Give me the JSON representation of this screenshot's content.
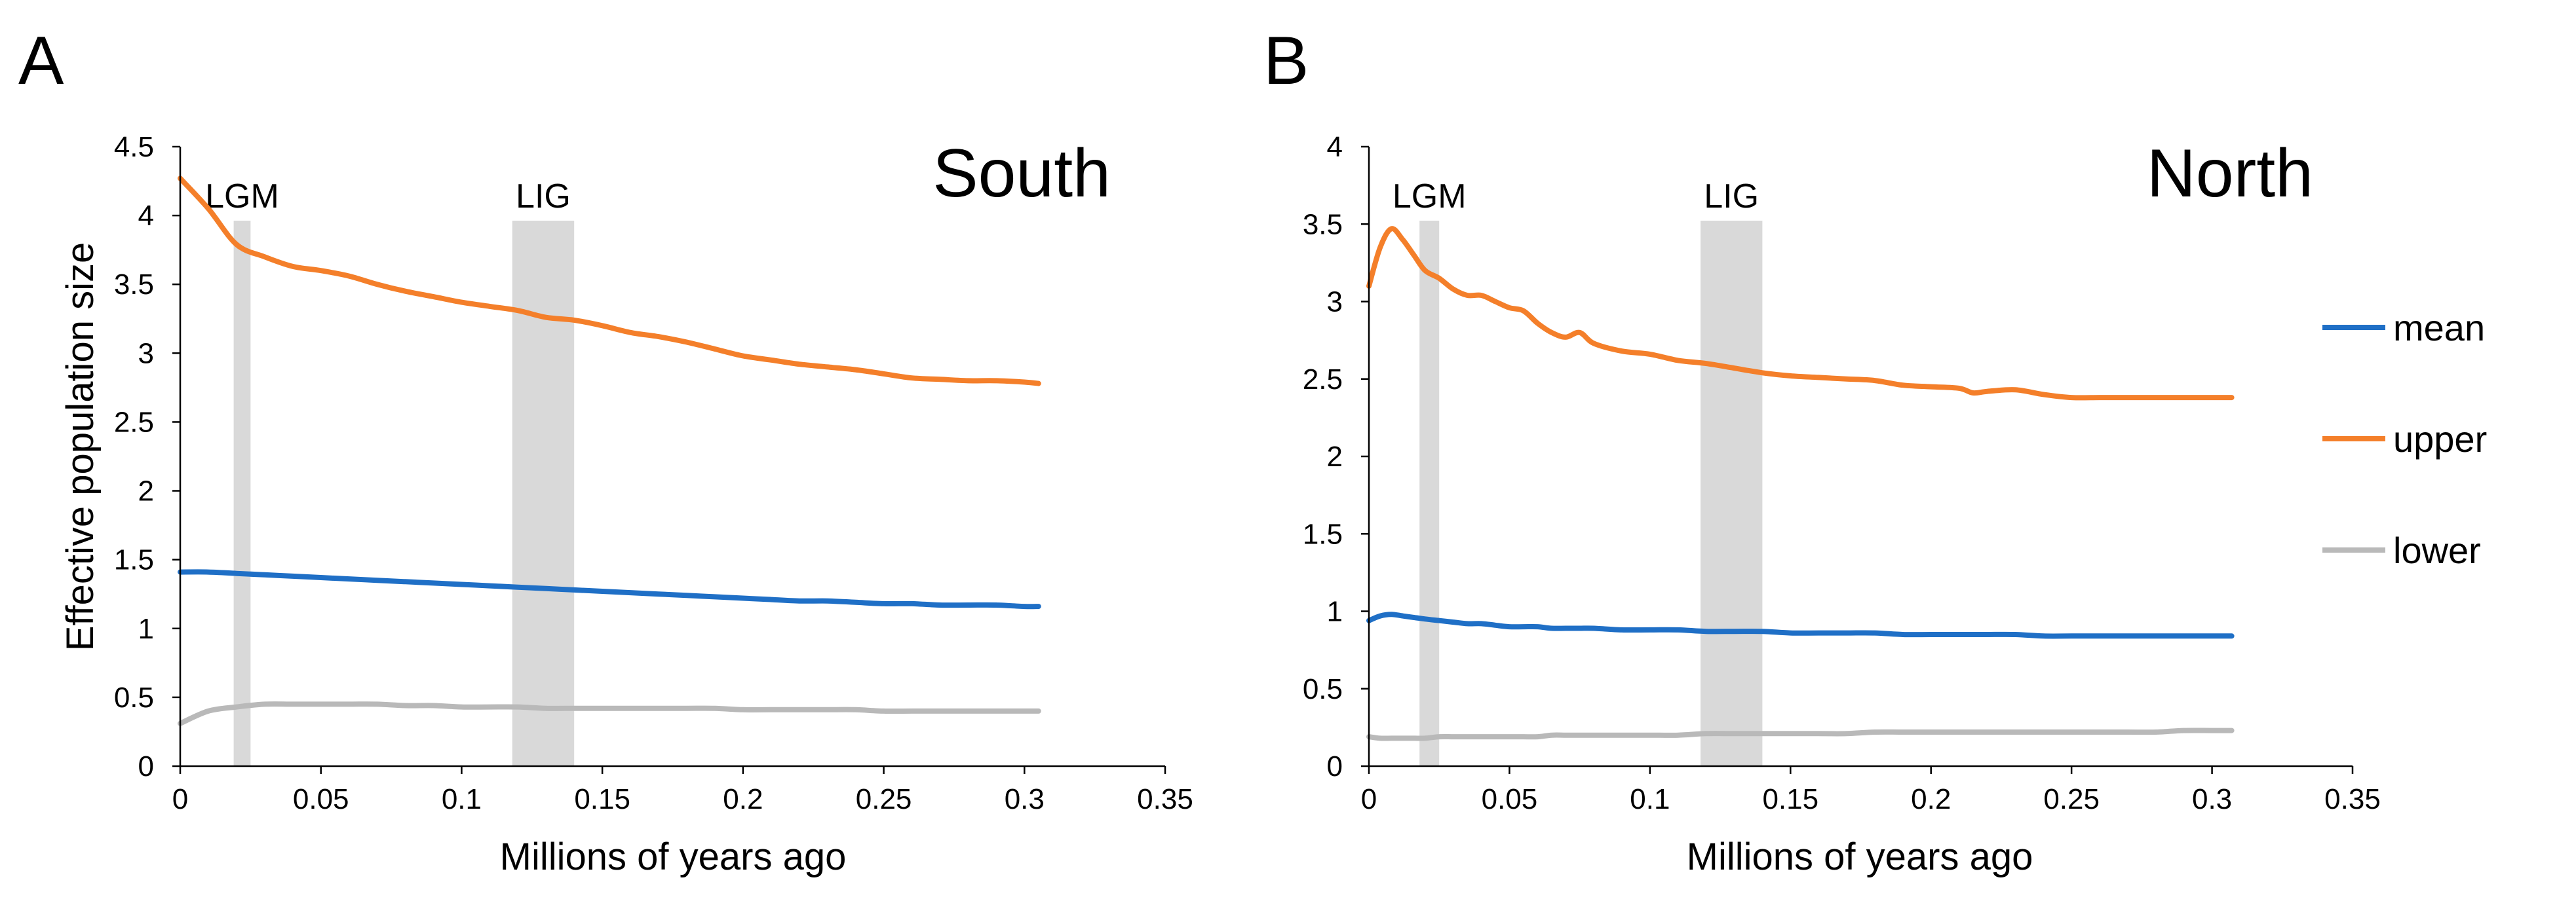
{
  "legend": [
    {
      "name": "mean",
      "color": "#1f6fc6"
    },
    {
      "name": "upper",
      "color": "#f47f2a"
    },
    {
      "name": "lower",
      "color": "#b9b9b9"
    }
  ],
  "chart_data": [
    {
      "type": "line",
      "panel_label": "A",
      "title": "South",
      "xlabel": "Millions of years ago",
      "ylabel": "Effective population size",
      "xlim": [
        0,
        0.35
      ],
      "ylim": [
        0,
        4.5
      ],
      "x_ticks": [
        "0",
        "0.05",
        "0.1",
        "0.15",
        "0.2",
        "0.25",
        "0.3",
        "0.35"
      ],
      "y_ticks": [
        "0",
        "0.5",
        "1",
        "1.5",
        "2",
        "2.5",
        "3",
        "3.5",
        "4",
        "4.5"
      ],
      "grid": false,
      "legend_position": "right",
      "shaded_bands": [
        {
          "label": "LGM",
          "x_start": 0.019,
          "x_end": 0.025
        },
        {
          "label": "LIG",
          "x_start": 0.118,
          "x_end": 0.14
        }
      ],
      "x": [
        0,
        0.01,
        0.02,
        0.03,
        0.04,
        0.05,
        0.06,
        0.07,
        0.08,
        0.09,
        0.1,
        0.11,
        0.12,
        0.13,
        0.14,
        0.15,
        0.16,
        0.17,
        0.18,
        0.19,
        0.2,
        0.21,
        0.22,
        0.23,
        0.24,
        0.25,
        0.26,
        0.27,
        0.28,
        0.29,
        0.3,
        0.305
      ],
      "series": [
        {
          "name": "mean",
          "color": "#1f6fc6",
          "values": [
            1.41,
            1.41,
            1.4,
            1.39,
            1.38,
            1.37,
            1.36,
            1.35,
            1.34,
            1.33,
            1.32,
            1.31,
            1.3,
            1.29,
            1.28,
            1.27,
            1.26,
            1.25,
            1.24,
            1.23,
            1.22,
            1.21,
            1.2,
            1.2,
            1.19,
            1.18,
            1.18,
            1.17,
            1.17,
            1.17,
            1.16,
            1.16
          ]
        },
        {
          "name": "upper",
          "color": "#f47f2a",
          "values": [
            4.27,
            4.05,
            3.79,
            3.7,
            3.63,
            3.6,
            3.56,
            3.5,
            3.45,
            3.41,
            3.37,
            3.34,
            3.31,
            3.26,
            3.24,
            3.2,
            3.15,
            3.12,
            3.08,
            3.03,
            2.98,
            2.95,
            2.92,
            2.9,
            2.88,
            2.85,
            2.82,
            2.81,
            2.8,
            2.8,
            2.79,
            2.78
          ]
        },
        {
          "name": "lower",
          "color": "#b9b9b9",
          "values": [
            0.31,
            0.4,
            0.43,
            0.45,
            0.45,
            0.45,
            0.45,
            0.45,
            0.44,
            0.44,
            0.43,
            0.43,
            0.43,
            0.42,
            0.42,
            0.42,
            0.42,
            0.42,
            0.42,
            0.42,
            0.41,
            0.41,
            0.41,
            0.41,
            0.41,
            0.4,
            0.4,
            0.4,
            0.4,
            0.4,
            0.4,
            0.4
          ]
        }
      ]
    },
    {
      "type": "line",
      "panel_label": "B",
      "title": "North",
      "xlabel": "Millions of years ago",
      "ylabel": "",
      "xlim": [
        0,
        0.35
      ],
      "ylim": [
        0,
        4
      ],
      "x_ticks": [
        "0",
        "0.05",
        "0.1",
        "0.15",
        "0.2",
        "0.25",
        "0.3",
        "0.35"
      ],
      "y_ticks": [
        "0",
        "0.5",
        "1",
        "1.5",
        "2",
        "2.5",
        "3",
        "3.5",
        "4"
      ],
      "grid": false,
      "legend_position": "right",
      "shaded_bands": [
        {
          "label": "LGM",
          "x_start": 0.018,
          "x_end": 0.025
        },
        {
          "label": "LIG",
          "x_start": 0.118,
          "x_end": 0.14
        }
      ],
      "x": [
        0,
        0.004,
        0.008,
        0.012,
        0.016,
        0.02,
        0.025,
        0.03,
        0.035,
        0.04,
        0.045,
        0.05,
        0.055,
        0.06,
        0.065,
        0.07,
        0.075,
        0.08,
        0.09,
        0.1,
        0.11,
        0.12,
        0.13,
        0.14,
        0.15,
        0.16,
        0.17,
        0.18,
        0.19,
        0.2,
        0.21,
        0.215,
        0.22,
        0.23,
        0.24,
        0.25,
        0.26,
        0.27,
        0.28,
        0.29,
        0.3,
        0.307
      ],
      "series": [
        {
          "name": "mean",
          "color": "#1f6fc6",
          "values": [
            0.94,
            0.97,
            0.98,
            0.97,
            0.96,
            0.95,
            0.94,
            0.93,
            0.92,
            0.92,
            0.91,
            0.9,
            0.9,
            0.9,
            0.89,
            0.89,
            0.89,
            0.89,
            0.88,
            0.88,
            0.88,
            0.87,
            0.87,
            0.87,
            0.86,
            0.86,
            0.86,
            0.86,
            0.85,
            0.85,
            0.85,
            0.85,
            0.85,
            0.85,
            0.84,
            0.84,
            0.84,
            0.84,
            0.84,
            0.84,
            0.84,
            0.84
          ]
        },
        {
          "name": "upper",
          "color": "#f47f2a",
          "values": [
            3.1,
            3.35,
            3.47,
            3.4,
            3.3,
            3.2,
            3.15,
            3.08,
            3.04,
            3.04,
            3.0,
            2.96,
            2.94,
            2.86,
            2.8,
            2.77,
            2.8,
            2.73,
            2.68,
            2.66,
            2.62,
            2.6,
            2.57,
            2.54,
            2.52,
            2.51,
            2.5,
            2.49,
            2.46,
            2.45,
            2.44,
            2.41,
            2.42,
            2.43,
            2.4,
            2.38,
            2.38,
            2.38,
            2.38,
            2.38,
            2.38,
            2.38
          ]
        },
        {
          "name": "lower",
          "color": "#b9b9b9",
          "values": [
            0.19,
            0.18,
            0.18,
            0.18,
            0.18,
            0.18,
            0.19,
            0.19,
            0.19,
            0.19,
            0.19,
            0.19,
            0.19,
            0.19,
            0.2,
            0.2,
            0.2,
            0.2,
            0.2,
            0.2,
            0.2,
            0.21,
            0.21,
            0.21,
            0.21,
            0.21,
            0.21,
            0.22,
            0.22,
            0.22,
            0.22,
            0.22,
            0.22,
            0.22,
            0.22,
            0.22,
            0.22,
            0.22,
            0.22,
            0.23,
            0.23,
            0.23
          ]
        }
      ]
    }
  ]
}
